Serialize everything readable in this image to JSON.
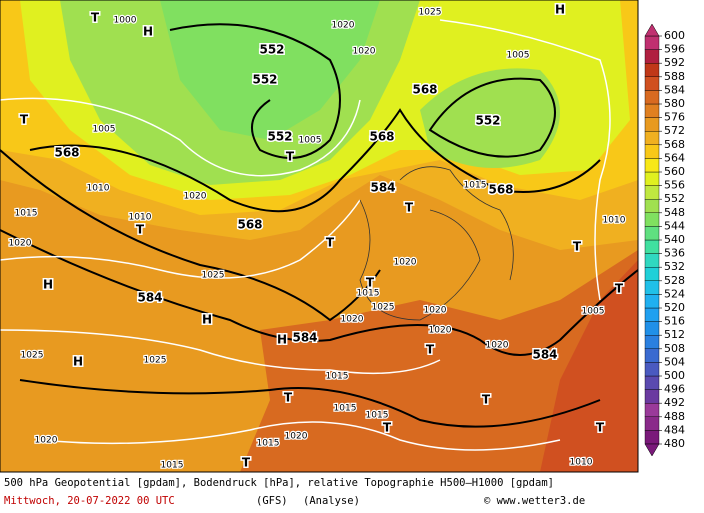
{
  "map": {
    "labels": [
      "1000",
      "1020",
      "1025",
      "H",
      "552",
      "552",
      "568",
      "552",
      "552",
      "568",
      "568",
      "568",
      "1005",
      "1010",
      "1020",
      "1015",
      "1020",
      "T",
      "568",
      "H",
      "584",
      "1025",
      "H",
      "1025",
      "H",
      "1025",
      "584",
      "H",
      "1020",
      "T",
      "584",
      "T",
      "T",
      "1015",
      "1025",
      "1020",
      "1020",
      "1020",
      "T",
      "1020",
      "584",
      "1005",
      "T",
      "T",
      "1015",
      "T",
      "1015",
      "1015",
      "T",
      "T",
      "T",
      "1020",
      "1020",
      "1015",
      "T",
      "1015",
      "1010",
      "T",
      "H",
      "1010",
      "T",
      "1010",
      "1020",
      "1005",
      "1015",
      "T",
      "1005"
    ]
  },
  "colorbar": {
    "ticks": [
      480,
      484,
      488,
      492,
      496,
      500,
      504,
      508,
      512,
      516,
      520,
      524,
      528,
      532,
      536,
      540,
      544,
      548,
      552,
      556,
      560,
      564,
      568,
      572,
      576,
      580,
      584,
      588,
      592,
      596,
      600
    ],
    "colors": [
      "#7a1a7a",
      "#8a2a8a",
      "#9a3a9a",
      "#6a3aa0",
      "#5a4ab0",
      "#4a5ac0",
      "#3a6ad0",
      "#2a80e0",
      "#2090e8",
      "#20a0f0",
      "#20b0f0",
      "#20c0e8",
      "#20d0d8",
      "#30d8c0",
      "#40e0a0",
      "#60e080",
      "#80e060",
      "#a0e050",
      "#c0e840",
      "#e0f020",
      "#f8e818",
      "#f8c818",
      "#f0b020",
      "#e89a20",
      "#e08020",
      "#d86a20",
      "#d05020",
      "#c03818",
      "#b02040",
      "#c03070"
    ]
  },
  "footer": {
    "description": "500 hPa Geopotential [gpdam], Bodendruck [hPa], relative Topographie H500–H1000 [gpdam]",
    "date": "Mittwoch, 20-07-2022  00 UTC",
    "model": "(GFS)",
    "mode": "(Analyse)",
    "credit": "© www.wetter3.de"
  }
}
